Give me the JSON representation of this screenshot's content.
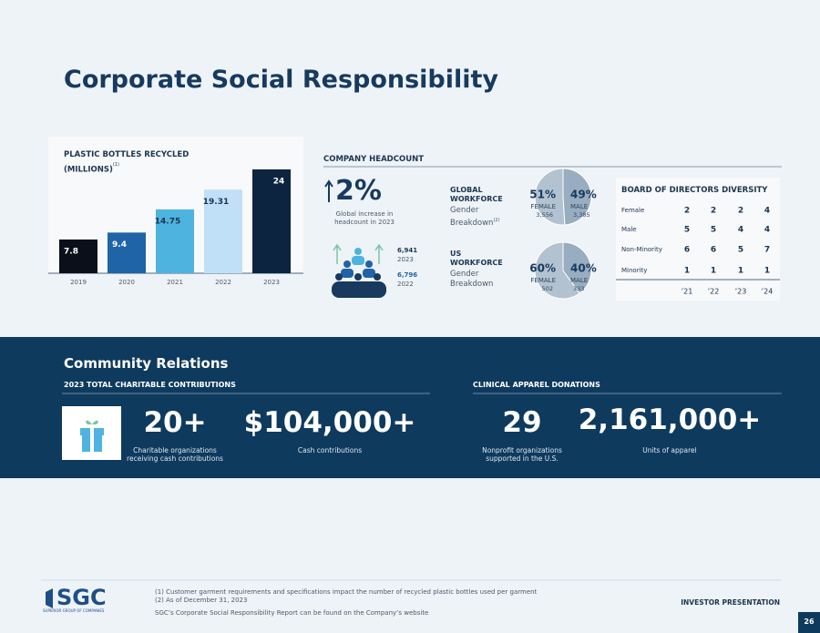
{
  "title": "Corporate Social Responsibility",
  "chart_data": [
    {
      "type": "bar",
      "title": "PLASTIC BOTTLES RECYCLED (MILLIONS)",
      "title_note": "(1)",
      "categories": [
        "2019",
        "2020",
        "2021",
        "2022",
        "2023"
      ],
      "values": [
        7.8,
        9.4,
        14.75,
        19.31,
        24
      ],
      "colors": [
        "#0b0f1a",
        "#1f64a6",
        "#4fb3e0",
        "#bfe0f7",
        "#0d2440"
      ]
    },
    {
      "type": "pie",
      "title": "GLOBAL WORKFORCE",
      "subtitle": "Gender Breakdown",
      "title_note": "(2)",
      "categories": [
        "FEMALE",
        "MALE"
      ],
      "values": [
        51,
        49
      ],
      "value_labels": [
        "51%",
        "49%"
      ],
      "counts": [
        3556,
        3385
      ],
      "count_labels": [
        "3,556",
        "3,385"
      ],
      "colors": [
        "#b3c2d0",
        "#98adbf"
      ]
    },
    {
      "type": "pie",
      "title": "US WORKFORCE",
      "subtitle": "Gender Breakdown",
      "categories": [
        "FEMALE",
        "MALE"
      ],
      "values": [
        60,
        40
      ],
      "value_labels": [
        "60%",
        "40%"
      ],
      "counts": [
        502,
        333
      ],
      "colors": [
        "#b3c2d0",
        "#98adbf"
      ]
    }
  ],
  "headcount": {
    "title": "COMPANY HEADCOUNT",
    "growth": "2%",
    "growth_caption": [
      "Global increase in",
      "headcount in 2023"
    ],
    "counts": [
      {
        "value": "6,941",
        "year": "2023"
      },
      {
        "value": "6,796",
        "year": "2022"
      }
    ]
  },
  "board": {
    "title": "BOARD OF DIRECTORS DIVERSITY",
    "columns": [
      "’21",
      "’22",
      "’23",
      "’24"
    ],
    "rows": [
      [
        "Female",
        "2",
        "2",
        "2",
        "4"
      ],
      [
        "Male",
        "5",
        "5",
        "4",
        "4"
      ],
      [
        "Non-Minority",
        "6",
        "6",
        "5",
        "7"
      ],
      [
        "Minority",
        "1",
        "1",
        "1",
        "1"
      ]
    ]
  },
  "community": {
    "title": "Community Relations",
    "charitable": {
      "heading": "2023 TOTAL CHARITABLE CONTRIBUTIONS",
      "stats": [
        {
          "value": "20+",
          "caption": [
            "Charitable organizations",
            "receiving cash contributions"
          ]
        },
        {
          "value": "$104,000+",
          "caption": [
            "Cash contributions"
          ]
        }
      ]
    },
    "apparel": {
      "heading": "CLINICAL APPAREL DONATIONS",
      "stats": [
        {
          "value": "29",
          "caption": [
            "Nonprofit organizations",
            "supported in the U.S."
          ]
        },
        {
          "value": "2,161,000+",
          "caption": [
            "Units of apparel"
          ]
        }
      ]
    }
  },
  "footer": {
    "logo": "SGC",
    "logo_tagline": "SUPERIOR GROUP OF COMPANIES",
    "notes": [
      "(1) Customer garment requirements and specifications impact the number of recycled plastic bottles used per garment",
      "(2) As of December 31, 2023"
    ],
    "website_note": "SGC’s Corporate Social Responsibility Report can be found on the Company’s website",
    "label": "INVESTOR PRESENTATION",
    "page": "26"
  }
}
